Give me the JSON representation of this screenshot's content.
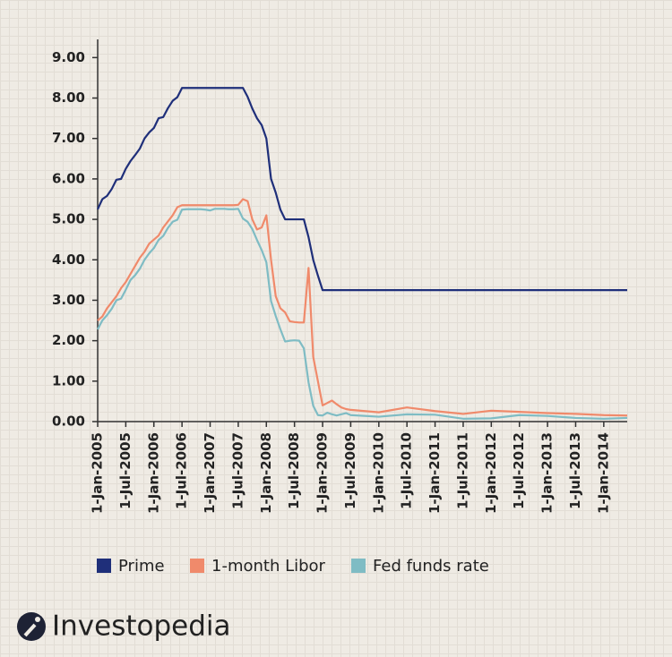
{
  "chart_data": {
    "type": "line",
    "x": [
      "2005-01",
      "2005-02",
      "2005-03",
      "2005-04",
      "2005-05",
      "2005-06",
      "2005-07",
      "2005-08",
      "2005-09",
      "2005-10",
      "2005-11",
      "2005-12",
      "2006-01",
      "2006-02",
      "2006-03",
      "2006-04",
      "2006-05",
      "2006-06",
      "2006-07",
      "2006-08",
      "2006-09",
      "2006-10",
      "2006-11",
      "2006-12",
      "2007-01",
      "2007-02",
      "2007-03",
      "2007-04",
      "2007-05",
      "2007-06",
      "2007-07",
      "2007-08",
      "2007-09",
      "2007-10",
      "2007-11",
      "2007-12",
      "2008-01",
      "2008-02",
      "2008-03",
      "2008-04",
      "2008-05",
      "2008-06",
      "2008-07",
      "2008-08",
      "2008-09",
      "2008-10",
      "2008-11",
      "2008-12",
      "2009-01",
      "2009-02",
      "2009-03",
      "2009-04",
      "2009-05",
      "2009-06",
      "2009-07",
      "2010-01",
      "2010-07",
      "2011-01",
      "2011-07",
      "2012-01",
      "2012-07",
      "2013-01",
      "2013-07",
      "2014-01",
      "2014-06"
    ],
    "series": [
      {
        "name": "Prime",
        "color": "#1f2f7a",
        "values": [
          5.25,
          5.5,
          5.58,
          5.75,
          5.98,
          6.0,
          6.25,
          6.44,
          6.59,
          6.75,
          7.0,
          7.15,
          7.26,
          7.5,
          7.53,
          7.75,
          7.93,
          8.02,
          8.25,
          8.25,
          8.25,
          8.25,
          8.25,
          8.25,
          8.25,
          8.25,
          8.25,
          8.25,
          8.25,
          8.25,
          8.25,
          8.25,
          8.03,
          7.74,
          7.5,
          7.33,
          7.0,
          6.0,
          5.66,
          5.24,
          5.0,
          5.0,
          5.0,
          5.0,
          5.0,
          4.56,
          4.0,
          3.61,
          3.25,
          3.25,
          3.25,
          3.25,
          3.25,
          3.25,
          3.25,
          3.25,
          3.25,
          3.25,
          3.25,
          3.25,
          3.25,
          3.25,
          3.25,
          3.25,
          3.25
        ]
      },
      {
        "name": "1-month Libor",
        "color": "#f08a6b",
        "values": [
          2.5,
          2.6,
          2.8,
          2.95,
          3.1,
          3.3,
          3.45,
          3.65,
          3.85,
          4.05,
          4.2,
          4.4,
          4.5,
          4.6,
          4.8,
          4.95,
          5.1,
          5.3,
          5.35,
          5.35,
          5.35,
          5.35,
          5.35,
          5.35,
          5.35,
          5.35,
          5.35,
          5.35,
          5.35,
          5.35,
          5.36,
          5.5,
          5.45,
          5.0,
          4.75,
          4.8,
          5.1,
          4.0,
          3.1,
          2.8,
          2.7,
          2.48,
          2.46,
          2.45,
          2.45,
          3.8,
          1.6,
          1.0,
          0.4,
          0.46,
          0.52,
          0.43,
          0.35,
          0.31,
          0.29,
          0.23,
          0.35,
          0.26,
          0.19,
          0.27,
          0.24,
          0.21,
          0.19,
          0.16,
          0.15
        ]
      },
      {
        "name": "Fed funds rate",
        "color": "#7fbcc4",
        "values": [
          2.28,
          2.5,
          2.63,
          2.79,
          3.0,
          3.04,
          3.26,
          3.5,
          3.62,
          3.78,
          4.0,
          4.16,
          4.29,
          4.49,
          4.59,
          4.79,
          4.94,
          4.99,
          5.24,
          5.25,
          5.25,
          5.25,
          5.25,
          5.24,
          5.22,
          5.26,
          5.26,
          5.26,
          5.25,
          5.25,
          5.26,
          5.02,
          4.94,
          4.76,
          4.49,
          4.24,
          3.94,
          2.98,
          2.61,
          2.28,
          1.98,
          2.0,
          2.01,
          2.0,
          1.81,
          0.97,
          0.39,
          0.16,
          0.15,
          0.22,
          0.18,
          0.15,
          0.18,
          0.21,
          0.16,
          0.12,
          0.18,
          0.17,
          0.07,
          0.08,
          0.16,
          0.14,
          0.09,
          0.07,
          0.09
        ]
      }
    ],
    "xlim": [
      "2005-01",
      "2014-06"
    ],
    "xticks": [
      {
        "value": "2005-01",
        "label": "1-Jan-2005"
      },
      {
        "value": "2005-07",
        "label": "1-Jul-2005"
      },
      {
        "value": "2006-01",
        "label": "1-Jan-2006"
      },
      {
        "value": "2006-07",
        "label": "1-Jul-2006"
      },
      {
        "value": "2007-01",
        "label": "1-Jan-2007"
      },
      {
        "value": "2007-07",
        "label": "1-Jul-2007"
      },
      {
        "value": "2008-01",
        "label": "1-Jan-2008"
      },
      {
        "value": "2008-07",
        "label": "1-Jul-2008"
      },
      {
        "value": "2009-01",
        "label": "1-Jan-2009"
      },
      {
        "value": "2009-07",
        "label": "1-Jul-2009"
      },
      {
        "value": "2010-01",
        "label": "1-Jan-2010"
      },
      {
        "value": "2010-07",
        "label": "1-Jul-2010"
      },
      {
        "value": "2011-01",
        "label": "1-Jan-2011"
      },
      {
        "value": "2011-07",
        "label": "1-Jul-2011"
      },
      {
        "value": "2012-01",
        "label": "1-Jan-2012"
      },
      {
        "value": "2012-07",
        "label": "1-Jul-2012"
      },
      {
        "value": "2013-01",
        "label": "1-Jan-2013"
      },
      {
        "value": "2013-07",
        "label": "1-Jul-2013"
      },
      {
        "value": "2014-01",
        "label": "1-Jan-2014"
      }
    ],
    "ylim": [
      0,
      9.45
    ],
    "yticks": [
      {
        "value": 0,
        "label": "0.00"
      },
      {
        "value": 1,
        "label": "1.00"
      },
      {
        "value": 2,
        "label": "2.00"
      },
      {
        "value": 3,
        "label": "3.00"
      },
      {
        "value": 4,
        "label": "4.00"
      },
      {
        "value": 5,
        "label": "5.00"
      },
      {
        "value": 6,
        "label": "6.00"
      },
      {
        "value": 7,
        "label": "7.00"
      },
      {
        "value": 8,
        "label": "8.00"
      },
      {
        "value": 9,
        "label": "9.00"
      }
    ],
    "legend": "bottom"
  },
  "logo": "Investopedia"
}
